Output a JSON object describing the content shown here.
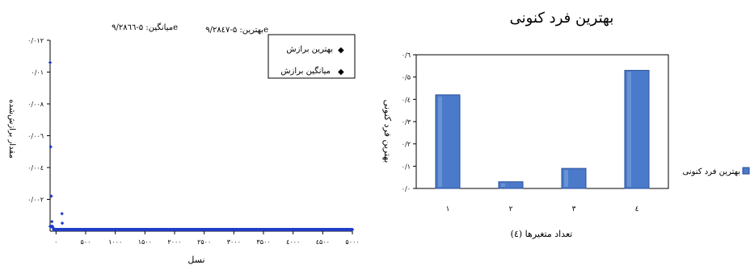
{
  "chart_data": [
    {
      "type": "scatter",
      "title": "",
      "annotations": {
        "best": "بهترین: ۵-۹/۲۸٤۷e",
        "mean": "میانگین: ۵-۹/۲۸٦٦e"
      },
      "xlabel": "نسل",
      "ylabel": "مقدار برازش‌شده",
      "xlim": [
        -100,
        5000
      ],
      "ylim": [
        0,
        0.012
      ],
      "xticks": [
        0,
        500,
        1000,
        1500,
        2000,
        2500,
        3000,
        3500,
        4000,
        4500,
        5000
      ],
      "xtick_labels": [
        "۰",
        "۵۰۰",
        "۱۰۰۰",
        "۱۵۰۰",
        "۲۰۰۰",
        "۲۵۰۰",
        "۳۰۰۰",
        "۳۵۰۰",
        "٤۰۰۰",
        "٤۵۰۰",
        "۵۰۰۰"
      ],
      "yticks": [
        0.002,
        0.004,
        0.006,
        0.008,
        0.01,
        0.012
      ],
      "ytick_labels": [
        "۰/۰۰۲",
        "۰/۰۰٤",
        "۰/۰۰٦",
        "۰/۰۰۸",
        "۰/۰۱",
        "۰/۰۱۲"
      ],
      "legend": {
        "placement": "top-right",
        "entries": [
          "بهترین برازش",
          "میانگین برازش"
        ]
      },
      "series": [
        {
          "name": "بهترین برازش",
          "x": [
            -100,
            -90,
            -80,
            -70,
            -60,
            -50,
            -40,
            -30,
            0,
            100,
            500,
            1000,
            2000,
            3000,
            4000,
            5000
          ],
          "y": [
            0.0106,
            0.0053,
            0.0022,
            0.0006,
            0.0003,
            0.0002,
            0.0001,
            0.0001,
            0.0001,
            0.0001,
            0.0001,
            0.0001,
            0.0001,
            0.0001,
            0.0001,
            0.0001
          ]
        },
        {
          "name": "میانگین برازش",
          "x": [
            -100,
            -90,
            -80,
            -70,
            100,
            105,
            500,
            1000,
            2000,
            3000,
            4000,
            5000
          ],
          "y": [
            0.0003,
            0.0003,
            0.0003,
            0.0003,
            0.0011,
            0.0005,
            0.0001,
            0.0001,
            0.0001,
            0.0001,
            0.0001,
            0.0001
          ]
        }
      ],
      "color": "#1f3cc9"
    },
    {
      "type": "bar",
      "title": "بهترین فرد کنونی",
      "xlabel": "تعداد متغیرها (٤)",
      "ylabel": "بهترین فرد کنونی",
      "categories": [
        "۱",
        "۲",
        "۳",
        "٤"
      ],
      "values": [
        0.42,
        0.03,
        0.09,
        0.53
      ],
      "ylim": [
        0,
        0.6
      ],
      "yticks": [
        0,
        0.1,
        0.2,
        0.3,
        0.4,
        0.5,
        0.6
      ],
      "ytick_labels": [
        "۰/۰",
        "۰/۱",
        "۰/۲",
        "۰/۳",
        "۰/٤",
        "۰/۵",
        "۰/٦"
      ],
      "legend": {
        "placement": "right",
        "entries": [
          "بهترین فرد کنونی"
        ]
      },
      "grid": false,
      "color": "#4a7ac9"
    }
  ]
}
